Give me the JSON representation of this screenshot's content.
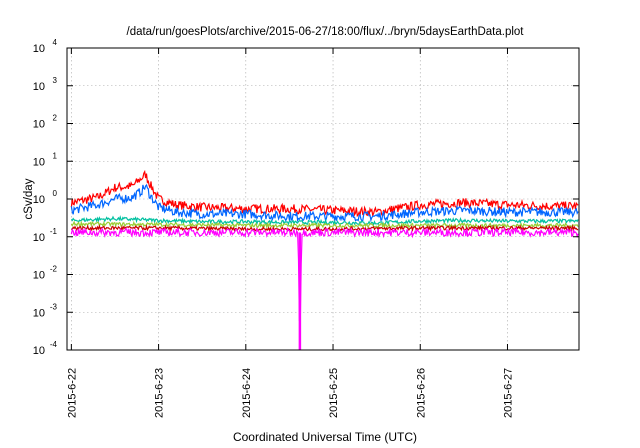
{
  "chart_data": {
    "type": "line",
    "title": "/data/run/goesPlots/archive/2015-06-27/18:00/flux/../bryn/5daysEarthData.plot",
    "xlabel": "Coordinated Universal Time (UTC)",
    "ylabel": "cSv/day",
    "y_scale": "log",
    "ylim": [
      0.0001,
      10000
    ],
    "xlim_days": [
      -0.05,
      5.82
    ],
    "x_ticks": [
      "2015-6-22",
      "2015-6-23",
      "2015-6-24",
      "2015-6-25",
      "2015-6-26",
      "2015-6-27"
    ],
    "y_ticks": [
      {
        "base": "10",
        "exp": "4",
        "value": 10000
      },
      {
        "base": "10",
        "exp": "3",
        "value": 1000
      },
      {
        "base": "10",
        "exp": "2",
        "value": 100
      },
      {
        "base": "10",
        "exp": "1",
        "value": 10
      },
      {
        "base": "10",
        "exp": "0",
        "value": 1
      },
      {
        "base": "10",
        "exp": "-1",
        "value": 0.1
      },
      {
        "base": "10",
        "exp": "-2",
        "value": 0.01
      },
      {
        "base": "10",
        "exp": "-3",
        "value": 0.001
      },
      {
        "base": "10",
        "exp": "-4",
        "value": 0.0001
      }
    ],
    "grid": true,
    "series": [
      {
        "color": "#ff0000",
        "x": [
          0,
          0.3,
          0.5,
          0.7,
          0.8,
          0.85,
          0.9,
          1.0,
          1.2,
          1.5,
          2.0,
          2.5,
          3.0,
          3.5,
          4.0,
          4.5,
          5.0,
          5.5,
          5.8
        ],
        "y": [
          0.8,
          1.1,
          2.0,
          2.2,
          3.5,
          4.5,
          2.5,
          1.0,
          0.7,
          0.6,
          0.55,
          0.55,
          0.5,
          0.45,
          0.7,
          0.8,
          0.7,
          0.65,
          0.65
        ]
      },
      {
        "color": "#0066ff",
        "x": [
          0,
          0.3,
          0.5,
          0.7,
          0.8,
          0.85,
          0.9,
          1.0,
          1.2,
          1.5,
          2.0,
          2.5,
          3.0,
          3.5,
          4.0,
          4.5,
          5.0,
          5.5,
          5.8
        ],
        "y": [
          0.5,
          0.7,
          1.0,
          1.1,
          1.6,
          2.2,
          1.3,
          0.6,
          0.45,
          0.4,
          0.4,
          0.35,
          0.35,
          0.35,
          0.45,
          0.5,
          0.45,
          0.45,
          0.45
        ]
      },
      {
        "color": "#00c0a0",
        "x": [
          0,
          0.5,
          1.0,
          1.5,
          2.0,
          2.5,
          3.0,
          3.5,
          4.0,
          4.5,
          5.0,
          5.5,
          5.8
        ],
        "y": [
          0.27,
          0.3,
          0.27,
          0.25,
          0.25,
          0.24,
          0.24,
          0.23,
          0.26,
          0.27,
          0.26,
          0.26,
          0.26
        ]
      },
      {
        "color": "#9acd32",
        "x": [
          0,
          1.0,
          2.0,
          3.0,
          4.0,
          5.0,
          5.8
        ],
        "y": [
          0.22,
          0.21,
          0.2,
          0.2,
          0.2,
          0.2,
          0.2
        ]
      },
      {
        "color": "#cc0000",
        "x": [
          0,
          1.0,
          2.0,
          3.0,
          4.0,
          5.0,
          5.8
        ],
        "y": [
          0.17,
          0.17,
          0.16,
          0.16,
          0.17,
          0.17,
          0.17
        ]
      },
      {
        "color": "#ff00ff",
        "x": [
          0,
          1.0,
          2.0,
          2.6,
          2.62,
          2.64,
          3.0,
          4.0,
          5.0,
          5.8
        ],
        "y": [
          0.13,
          0.13,
          0.13,
          0.13,
          0.0001,
          0.13,
          0.13,
          0.13,
          0.13,
          0.13
        ]
      }
    ]
  }
}
